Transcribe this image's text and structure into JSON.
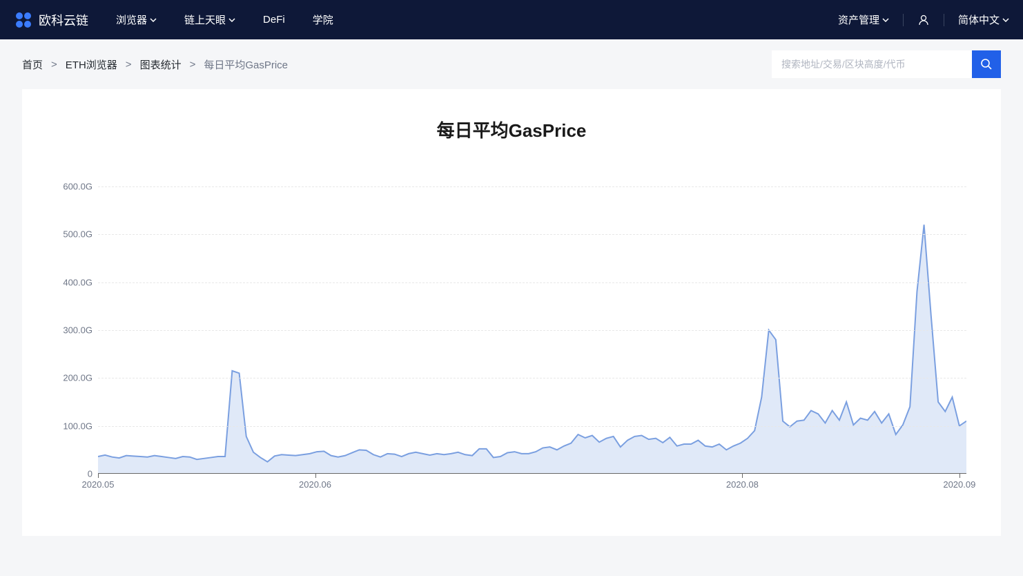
{
  "header": {
    "logo_text": "欧科云链",
    "nav": [
      {
        "label": "浏览器",
        "has_dropdown": true
      },
      {
        "label": "链上天眼",
        "has_dropdown": true
      },
      {
        "label": "DeFi",
        "has_dropdown": false
      },
      {
        "label": "学院",
        "has_dropdown": false
      }
    ],
    "asset_mgmt": "资产管理",
    "language": "简体中文"
  },
  "breadcrumb": {
    "items": [
      {
        "label": "首页",
        "link": true
      },
      {
        "label": "ETH浏览器",
        "link": true
      },
      {
        "label": "图表统计",
        "link": true
      },
      {
        "label": "每日平均GasPrice",
        "link": false
      }
    ]
  },
  "search": {
    "placeholder": "搜索地址/交易/区块高度/代币"
  },
  "chart": {
    "title": "每日平均GasPrice",
    "type": "area",
    "line_color": "#7a9fe0",
    "fill_color": "rgba(166, 193, 234, 0.35)",
    "grid_color": "#e8e8e8",
    "axis_color": "#666666",
    "label_color": "#6e7687",
    "label_fontsize": 13,
    "ylim": [
      0,
      620
    ],
    "yticks": [
      0,
      100,
      200,
      300,
      400,
      500,
      600
    ],
    "ytick_labels": [
      "0",
      "100.0G",
      "200.0G",
      "300.0G",
      "400.0G",
      "500.0G",
      "600.0G"
    ],
    "xlim": [
      0,
      124
    ],
    "xticks": [
      0,
      31,
      92,
      123
    ],
    "xtick_labels": [
      "2020.05",
      "2020.06",
      "2020.08",
      "2020.09"
    ],
    "data": [
      36,
      39,
      35,
      33,
      38,
      37,
      36,
      35,
      38,
      36,
      34,
      32,
      36,
      35,
      30,
      32,
      34,
      36,
      36,
      215,
      210,
      78,
      45,
      34,
      25,
      37,
      40,
      39,
      38,
      40,
      42,
      46,
      47,
      38,
      35,
      38,
      44,
      50,
      49,
      40,
      35,
      42,
      41,
      36,
      42,
      45,
      42,
      39,
      42,
      40,
      42,
      45,
      40,
      38,
      52,
      52,
      34,
      36,
      44,
      46,
      42,
      42,
      46,
      54,
      56,
      50,
      58,
      64,
      82,
      75,
      80,
      66,
      74,
      78,
      56,
      70,
      78,
      80,
      72,
      74,
      65,
      76,
      58,
      62,
      62,
      70,
      58,
      56,
      62,
      50,
      58,
      64,
      74,
      90,
      160,
      300,
      280,
      110,
      98,
      110,
      112,
      132,
      125,
      106,
      132,
      112,
      150,
      102,
      116,
      112,
      130,
      106,
      125,
      82,
      102,
      140,
      380,
      520,
      330,
      150,
      130,
      160,
      100,
      110
    ]
  }
}
